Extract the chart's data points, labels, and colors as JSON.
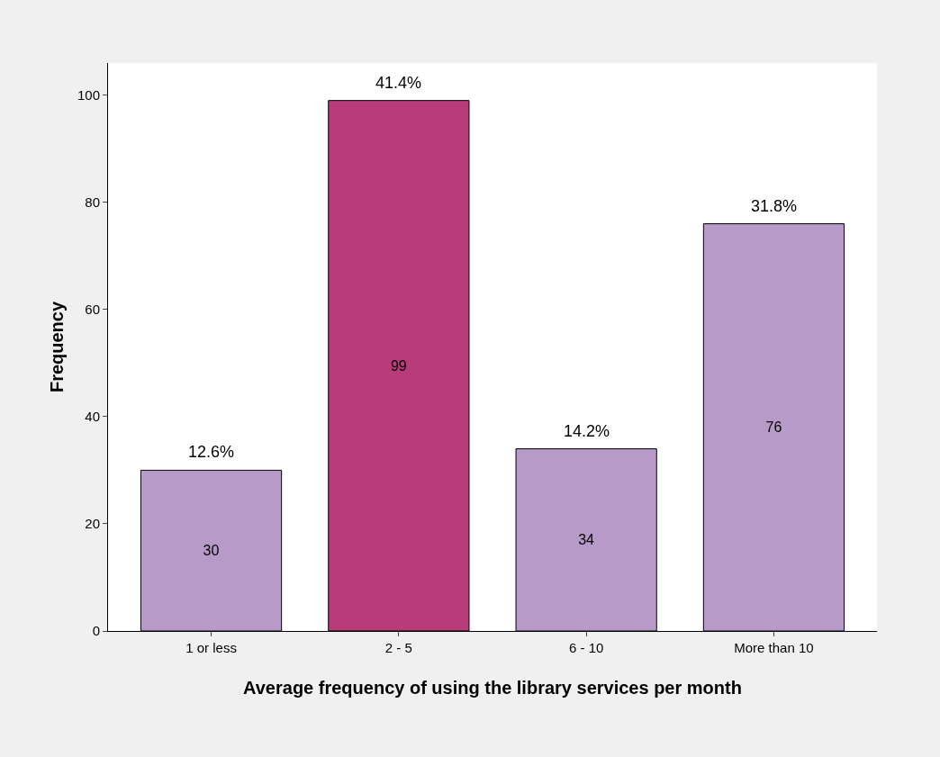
{
  "chart_data": {
    "type": "bar",
    "xlabel": "Average frequency of using the library services per month",
    "ylabel": "Frequency",
    "categories": [
      "1 or less",
      "2 - 5",
      "6 - 10",
      "More than 10"
    ],
    "values": [
      30,
      99,
      34,
      76
    ],
    "colors": [
      "#b89ac9",
      "#b83c7a",
      "#b89ac9",
      "#b89ac9"
    ],
    "ylim": [
      0,
      106
    ],
    "yticks": [
      0,
      20,
      40,
      60,
      80,
      100
    ],
    "data_labels": true,
    "annotations": [
      {
        "text": "12.6%",
        "x": "1 or less",
        "y": 30
      },
      {
        "text": "41.4%",
        "x": "2 - 5",
        "y": 99
      },
      {
        "text": "14.2%",
        "x": "6 - 10",
        "y": 34
      },
      {
        "text": "31.8%",
        "x": "More than 10",
        "y": 76
      }
    ]
  }
}
